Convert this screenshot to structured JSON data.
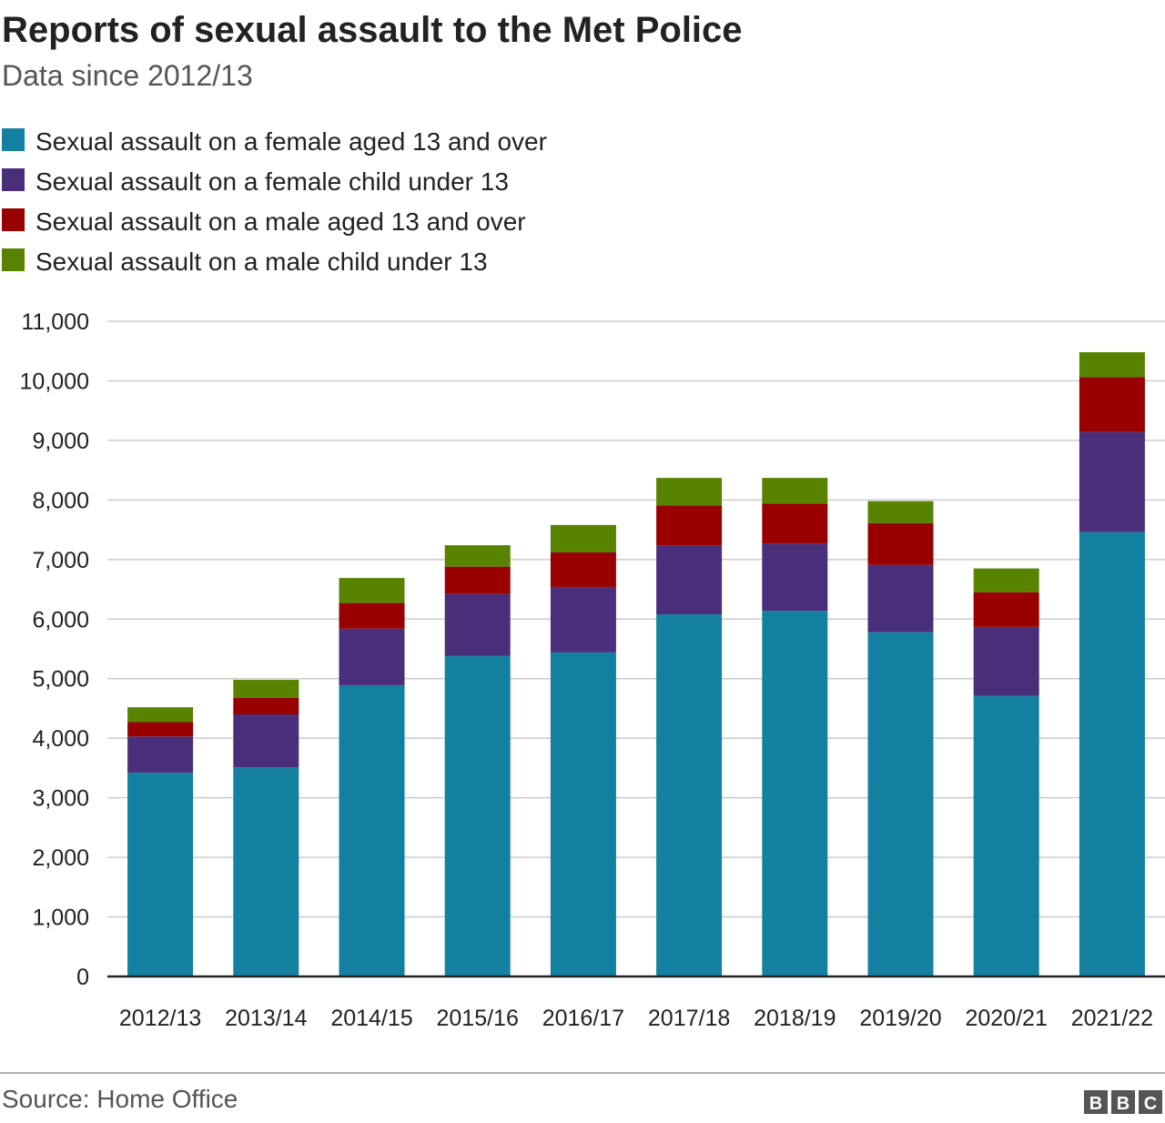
{
  "chart_data": {
    "type": "bar",
    "stacked": true,
    "title": "Reports of sexual assault to the Met Police",
    "subtitle": "Data since 2012/13",
    "xlabel": "",
    "ylabel": "",
    "ylim": [
      0,
      11000
    ],
    "yticks": [
      0,
      1000,
      2000,
      3000,
      4000,
      5000,
      6000,
      7000,
      8000,
      9000,
      10000,
      11000
    ],
    "ytick_labels": [
      "0",
      "1,000",
      "2,000",
      "3,000",
      "4,000",
      "5,000",
      "6,000",
      "7,000",
      "8,000",
      "9,000",
      "10,000",
      "11,000"
    ],
    "grid": true,
    "legend_placement": "top-left",
    "categories": [
      "2012/13",
      "2013/14",
      "2014/15",
      "2015/16",
      "2016/17",
      "2017/18",
      "2018/19",
      "2019/20",
      "2020/21",
      "2021/22"
    ],
    "series": [
      {
        "name": "Sexual assault on a female aged 13 and over",
        "color": "#1380a1",
        "values": [
          3420,
          3510,
          4890,
          5380,
          5440,
          6080,
          6140,
          5780,
          4710,
          7460
        ]
      },
      {
        "name": "Sexual assault on a female child under 13",
        "color": "#4b2e7a",
        "values": [
          610,
          890,
          950,
          1040,
          1100,
          1160,
          1130,
          1130,
          1160,
          1680
        ]
      },
      {
        "name": "Sexual assault on a male aged 13 and over",
        "color": "#990000",
        "values": [
          240,
          280,
          430,
          460,
          580,
          670,
          670,
          700,
          580,
          920
        ]
      },
      {
        "name": "Sexual assault on a male child under 13",
        "color": "#588300",
        "values": [
          250,
          300,
          420,
          360,
          460,
          460,
          430,
          370,
          400,
          420
        ]
      }
    ]
  },
  "footer": {
    "source": "Source: Home Office",
    "logo": "BBC"
  }
}
